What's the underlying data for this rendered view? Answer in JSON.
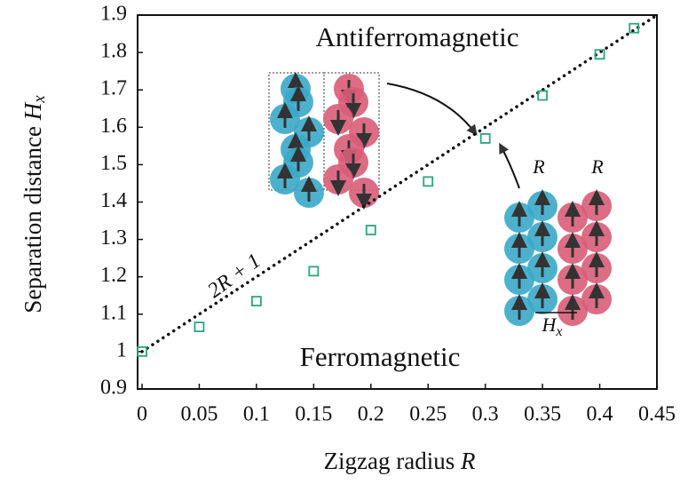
{
  "chart_data": {
    "type": "scatter",
    "xlabel": "Zigzag radius",
    "xlabel_symbol": "R",
    "ylabel": "Separation distance",
    "ylabel_symbol": "H",
    "ylabel_subscript": "x",
    "annotations": [
      "Antiferromagnetic",
      "Ferromagnetic",
      "2R + 1"
    ],
    "inset_labels": [
      "R",
      "R",
      "H",
      "x"
    ],
    "xlim": [
      0,
      0.45
    ],
    "ylim": [
      0.9,
      1.9
    ],
    "xticks": [
      0,
      0.05,
      0.1,
      0.15,
      0.2,
      0.25,
      0.3,
      0.35,
      0.4,
      0.45
    ],
    "yticks": [
      0.9,
      1,
      1.1,
      1.2,
      1.3,
      1.4,
      1.5,
      1.6,
      1.7,
      1.8,
      1.9
    ],
    "series": [
      {
        "color": "#2aa57f",
        "x": [
          0,
          0.05,
          0.1,
          0.15,
          0.2,
          0.25,
          0.3,
          0.35,
          0.4,
          0.43
        ],
        "values": [
          1.0,
          1.066,
          1.135,
          1.215,
          1.325,
          1.455,
          1.57,
          1.685,
          1.795,
          1.865
        ]
      }
    ],
    "line": {
      "color": "#111111",
      "x": [
        0,
        0.45
      ],
      "values": [
        1,
        1.9
      ]
    }
  }
}
